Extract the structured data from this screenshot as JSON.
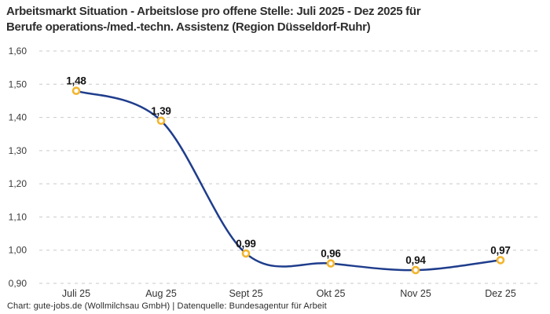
{
  "header": {
    "title_line1": "Arbeitsmarkt Situation - Arbeitslose pro offene Stelle: Juli 2025 - Dez 2025 für",
    "title_line2": "Berufe operations-/med.-techn. Assistenz (Region Düsseldorf-Ruhr)"
  },
  "footer": {
    "source": "Chart: gute-jobs.de (Wollmilchsau GmbH) | Datenquelle: Bundesagentur für Arbeit"
  },
  "chart_data": {
    "type": "line",
    "title": "Arbeitsmarkt Situation - Arbeitslose pro offene Stelle: Juli 2025 - Dez 2025 für Berufe operations-/med.-techn. Assistenz (Region Düsseldorf-Ruhr)",
    "categories": [
      "Juli 25",
      "Aug 25",
      "Sept 25",
      "Okt 25",
      "Nov 25",
      "Dez 25"
    ],
    "values": [
      1.48,
      1.39,
      0.99,
      0.96,
      0.94,
      0.97
    ],
    "value_labels": [
      "1,48",
      "1,39",
      "0,99",
      "0,96",
      "0,94",
      "0,97"
    ],
    "y_ticks": [
      1.6,
      1.5,
      1.4,
      1.3,
      1.2,
      1.1,
      1.0,
      0.9
    ],
    "y_tick_labels": [
      "1,60",
      "1,50",
      "1,40",
      "1,30",
      "1,20",
      "1,10",
      "1,00",
      "0,90"
    ],
    "ylim": [
      0.9,
      1.6
    ],
    "xlabel": "",
    "ylabel": "",
    "grid": "horizontal-dashed",
    "legend": "none",
    "curve": "smooth",
    "colors": {
      "line": "#1f3d8c",
      "marker_ring": "#f2b52e",
      "marker_fill": "#ffffff",
      "grid": "#c9c9c9",
      "data_label": "#141414",
      "tick_label": "#3a3a3a"
    }
  }
}
